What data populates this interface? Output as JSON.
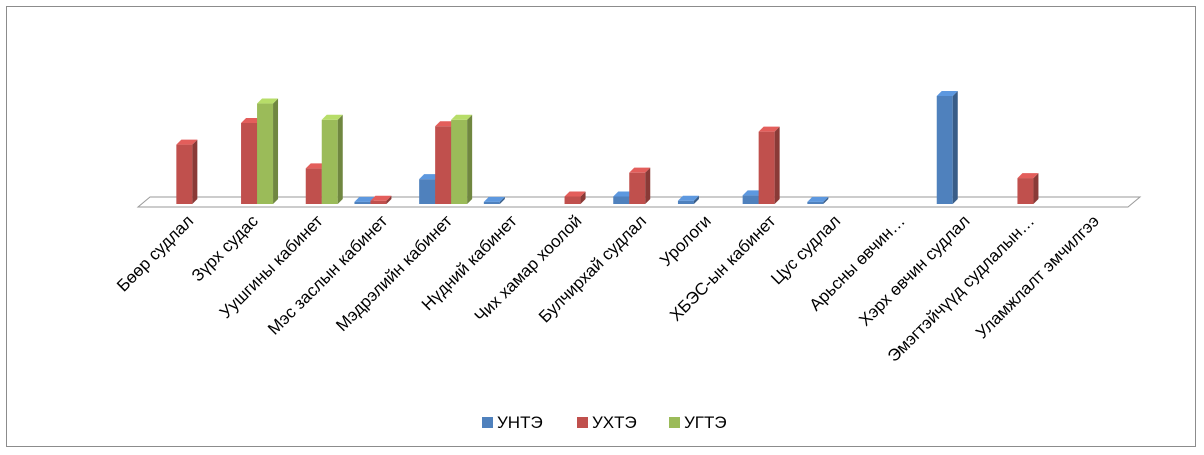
{
  "chart_data": {
    "type": "bar",
    "title": "",
    "xlabel": "",
    "ylabel": "",
    "ylim": [
      0,
      100
    ],
    "grid": false,
    "legend_position": "bottom",
    "categories": [
      "Бөөр судлал",
      "Зүрх судас",
      "Уушгины кабинет",
      "Мэс заслын кабинет",
      "Мэдрэлийн  кабинет",
      "Нүдний  кабинет",
      "Чих хамар хоолой",
      "Булчирхай судлал",
      "Урологи",
      "ХБЭС-ын кабинет",
      "Цус судлал",
      "Арьсны өвчин…",
      "Хэрх өвчин судлал",
      "Эмэгтэйчүүд судлалын…",
      "Уламжлалт эмчилгээ"
    ],
    "series": [
      {
        "name": "УНТЭ",
        "color": "#4f81bd",
        "values": [
          0,
          0,
          0,
          2,
          23,
          2,
          0,
          7,
          3,
          8,
          2,
          0,
          100,
          0,
          0
        ]
      },
      {
        "name": "УХТЭ",
        "color": "#c0504d",
        "values": [
          55,
          75,
          33,
          3,
          72,
          0,
          7,
          29,
          0,
          67,
          0,
          0,
          0,
          24,
          0
        ]
      },
      {
        "name": "УГТЭ",
        "color": "#9bbb59",
        "values": [
          0,
          93,
          78,
          0,
          78,
          0,
          0,
          0,
          0,
          0,
          0,
          0,
          0,
          0,
          0
        ]
      }
    ]
  }
}
